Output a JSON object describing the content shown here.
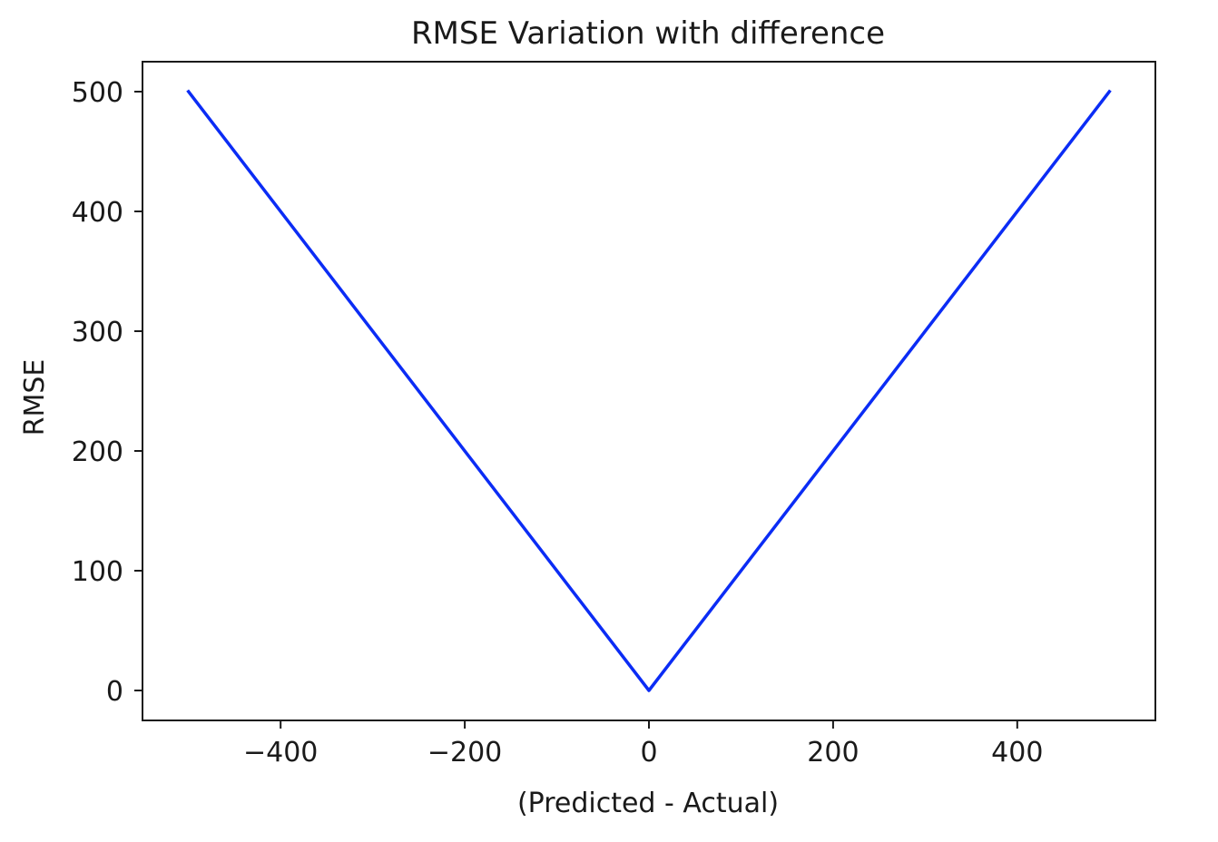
{
  "chart_data": {
    "type": "line",
    "title": "RMSE Variation with difference",
    "xlabel": "(Predicted - Actual)",
    "ylabel": "RMSE",
    "xlim": [
      -550,
      550
    ],
    "ylim": [
      -25,
      525
    ],
    "xticks": [
      -400,
      -200,
      0,
      200,
      400
    ],
    "xtick_labels": [
      "−400",
      "−200",
      "0",
      "200",
      "400"
    ],
    "yticks": [
      0,
      100,
      200,
      300,
      400,
      500
    ],
    "ytick_labels": [
      "0",
      "100",
      "200",
      "300",
      "400",
      "500"
    ],
    "grid": false,
    "legend": "none",
    "series": [
      {
        "color": "#0b2cf5",
        "x": [
          -500,
          0,
          500
        ],
        "y": [
          500,
          0,
          500
        ]
      }
    ]
  }
}
